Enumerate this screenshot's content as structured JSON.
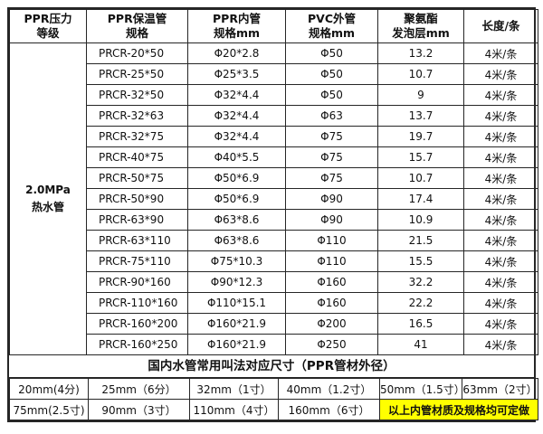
{
  "colors": {
    "background": "#ffffff",
    "border": "#262626",
    "text": "#111111",
    "highlight": "#ffff00"
  },
  "main_table": {
    "pressure_grade": {
      "lines": [
        "2.0MPa",
        "热水管"
      ]
    },
    "headers": [
      {
        "id": "pressure-grade",
        "lines": [
          "PPR压力",
          "等级"
        ]
      },
      {
        "id": "insulation-spec",
        "lines": [
          "PPR保温管",
          "规格"
        ]
      },
      {
        "id": "inner-pipe-spec",
        "lines": [
          "PPR内管",
          "规格mm"
        ]
      },
      {
        "id": "outer-pipe-spec",
        "lines": [
          "PVC外管",
          "规格mm"
        ]
      },
      {
        "id": "foam-layer",
        "lines": [
          "聚氨酯",
          "发泡层mm"
        ]
      },
      {
        "id": "length-per-piece",
        "lines": [
          "长度/条"
        ]
      }
    ],
    "rows": [
      {
        "spec": "PRCR-20*50",
        "inner": "Φ20*2.8",
        "outer": "Φ50",
        "foam": "13.2",
        "length": "4米/条"
      },
      {
        "spec": "PRCR-25*50",
        "inner": "Φ25*3.5",
        "outer": "Φ50",
        "foam": "10.7",
        "length": "4米/条"
      },
      {
        "spec": "PRCR-32*50",
        "inner": "Φ32*4.4",
        "outer": "Φ50",
        "foam": "9",
        "length": "4米/条"
      },
      {
        "spec": "PRCR-32*63",
        "inner": "Φ32*4.4",
        "outer": "Φ63",
        "foam": "13.7",
        "length": "4米/条"
      },
      {
        "spec": "PRCR-32*75",
        "inner": "Φ32*4.4",
        "outer": "Φ75",
        "foam": "19.7",
        "length": "4米/条"
      },
      {
        "spec": "PRCR-40*75",
        "inner": "Φ40*5.5",
        "outer": "Φ75",
        "foam": "15.7",
        "length": "4米/条"
      },
      {
        "spec": "PRCR-50*75",
        "inner": "Φ50*6.9",
        "outer": "Φ75",
        "foam": "10.7",
        "length": "4米/条"
      },
      {
        "spec": "PRCR-50*90",
        "inner": "Φ50*6.9",
        "outer": "Φ90",
        "foam": "17.4",
        "length": "4米/条"
      },
      {
        "spec": "PRCR-63*90",
        "inner": "Φ63*8.6",
        "outer": "Φ90",
        "foam": "10.9",
        "length": "4米/条"
      },
      {
        "spec": "PRCR-63*110",
        "inner": "Φ63*8.6",
        "outer": "Φ110",
        "foam": "21.5",
        "length": "4米/条"
      },
      {
        "spec": "PRCR-75*110",
        "inner": "Φ75*10.3",
        "outer": "Φ110",
        "foam": "15.5",
        "length": "4米/条"
      },
      {
        "spec": "PRCR-90*160",
        "inner": "Φ90*12.3",
        "outer": "Φ160",
        "foam": "32.2",
        "length": "4米/条"
      },
      {
        "spec": "PRCR-110*160",
        "inner": "Φ110*15.1",
        "outer": "Φ160",
        "foam": "22.2",
        "length": "4米/条"
      },
      {
        "spec": "PRCR-160*200",
        "inner": "Φ160*21.9",
        "outer": "Φ200",
        "foam": "16.5",
        "length": "4米/条"
      },
      {
        "spec": "PRCR-160*250",
        "inner": "Φ160*21.9",
        "outer": "Φ250",
        "foam": "41",
        "length": "4米/条"
      }
    ]
  },
  "naming_section": {
    "title": "国内水管常用叫法对应尺寸（PPR管材外径）",
    "row1": [
      "20mm(4分)",
      "25mm（6分）",
      "32mm（1寸）",
      "40mm（1.2寸）",
      "50mm（1.5寸）",
      "63mm（2寸）"
    ],
    "row2": [
      "75mm(2.5寸)",
      "90mm（3寸）",
      "110mm（4寸）",
      "160mm（6寸）"
    ],
    "note": "以上内管材质及规格均可定做"
  }
}
